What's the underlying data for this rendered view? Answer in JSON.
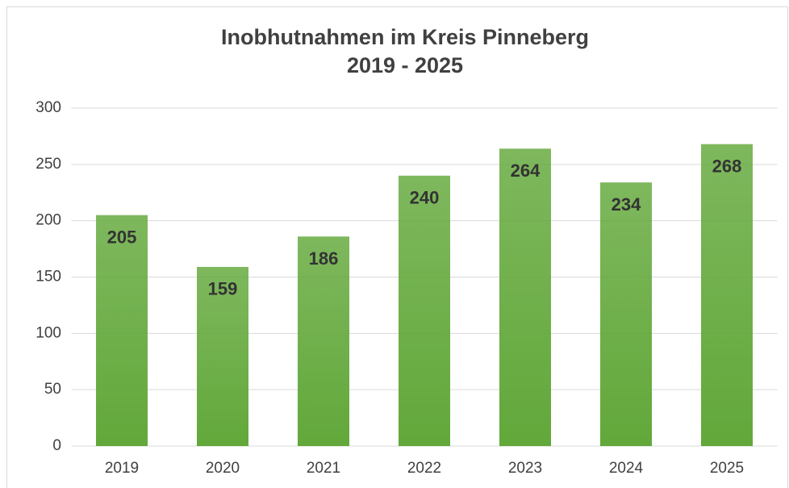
{
  "chart_data": {
    "type": "bar",
    "title": [
      "Inobhutnahmen im Kreis Pinneberg",
      "2019 - 2025"
    ],
    "categories": [
      "2019",
      "2020",
      "2021",
      "2022",
      "2023",
      "2024",
      "2025"
    ],
    "values": [
      205,
      159,
      186,
      240,
      264,
      234,
      268
    ],
    "color": "#62a83a",
    "ylim": [
      0,
      300
    ],
    "yticks": [
      0,
      50,
      100,
      150,
      200,
      250,
      300
    ],
    "grid": true
  }
}
